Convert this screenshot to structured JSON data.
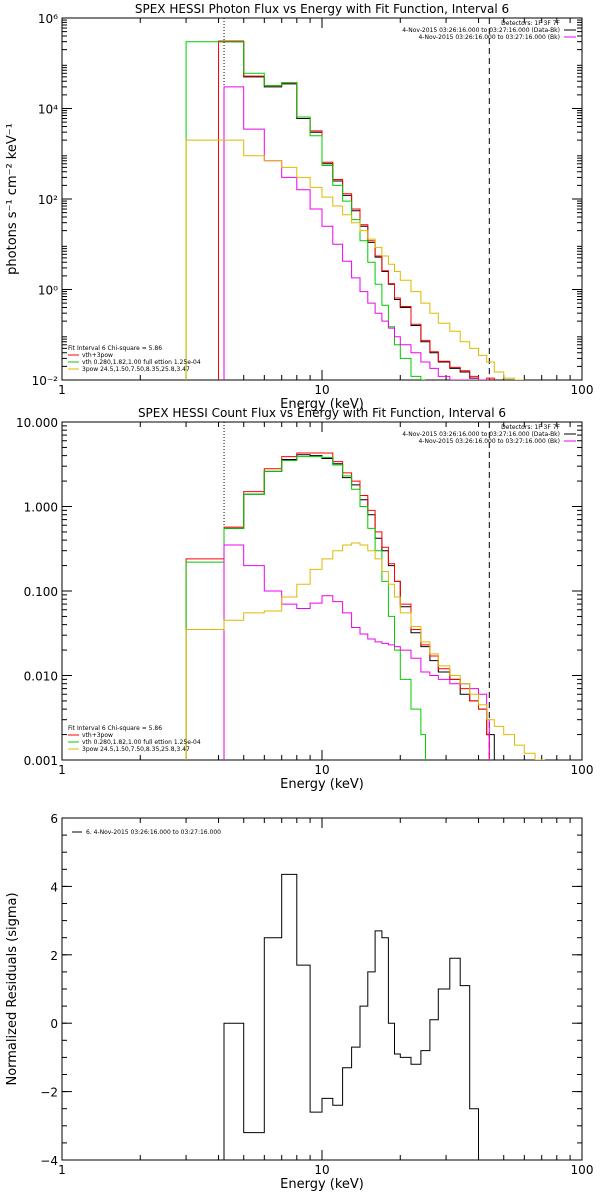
{
  "chart_data": [
    {
      "type": "line",
      "title": "SPEX HESSI Photon Flux vs Energy with Fit Function, Interval 6",
      "xlabel": "Energy (keV)",
      "ylabel": "photons s⁻¹ cm⁻² keV⁻¹",
      "xscale": "log",
      "yscale": "log",
      "xlim": [
        1,
        100
      ],
      "ylim": [
        0.01,
        1000000
      ],
      "xticks": [
        {
          "value": 1,
          "label": "1"
        },
        {
          "value": 10,
          "label": "10"
        },
        {
          "value": 100,
          "label": "100"
        }
      ],
      "yticks": [
        {
          "value": 0.01,
          "label": "10⁻²"
        },
        {
          "value": 1,
          "label": "10⁰"
        },
        {
          "value": 100,
          "label": "10²"
        },
        {
          "value": 10000,
          "label": "10⁴"
        },
        {
          "value": 1000000,
          "label": "10⁶"
        }
      ],
      "vlines": [
        {
          "x": 4.2,
          "style": "dotted"
        },
        {
          "x": 44,
          "style": "dashed"
        }
      ],
      "legend_right": [
        "Detectors: 1F 3F 7F",
        "4-Nov-2015 03:26:16.000 to 03:27:16.000 (Data-Bk)",
        "4-Nov-2015 03:26:16.000 to 03:27:16.000 (Bk)"
      ],
      "legend_left": [
        "Fit Interval 6   Chi-square = 5.86",
        "vth+3pow",
        "vth 0.280,1.82,1.00  full ettion 1.25e-04",
        "3pow 24.5,1.50,7.50,8.35,25.8,3.47"
      ],
      "series": [
        {
          "color": "#000000",
          "style": "step",
          "edges": [
            4,
            5,
            6,
            7,
            8,
            9,
            10,
            11,
            12,
            13,
            14,
            15,
            16,
            17,
            18,
            19,
            20,
            22,
            24,
            26,
            28,
            31,
            34,
            37,
            40,
            43,
            46
          ],
          "y": [
            300000,
            50000,
            30000,
            35000,
            6000,
            3000,
            600,
            250,
            120,
            55,
            25,
            11,
            5.2,
            2.5,
            1.3,
            0.6,
            0.4,
            0.16,
            0.07,
            0.04,
            0.025,
            0.018,
            0.015,
            0.011,
            0.006,
            0.01
          ]
        },
        {
          "color": "#ff0000",
          "style": "step",
          "edges": [
            4,
            5,
            6,
            7,
            8,
            9,
            10,
            11,
            12,
            13,
            14,
            15,
            16,
            17,
            18,
            19,
            20,
            22,
            24,
            26,
            28,
            31,
            34,
            37,
            40,
            43,
            46
          ],
          "y": [
            310000,
            52000,
            32000,
            37000,
            6500,
            3200,
            650,
            270,
            130,
            60,
            27,
            12,
            5.5,
            2.6,
            1.35,
            0.65,
            0.42,
            0.17,
            0.075,
            0.042,
            0.026,
            0.019,
            0.016,
            0.012,
            0.0065,
            0.011
          ]
        },
        {
          "color": "#00cc00",
          "style": "step",
          "edges": [
            3,
            4,
            5,
            6,
            7,
            8,
            9,
            10,
            11,
            12,
            13,
            14,
            15,
            16,
            17,
            18,
            19,
            20,
            22,
            24,
            25
          ],
          "y": [
            300000,
            300000,
            60000,
            32000,
            37000,
            6500,
            2500,
            550,
            200,
            90,
            35,
            12,
            4,
            1.3,
            0.45,
            0.15,
            0.06,
            0.03,
            0.012,
            0.01
          ]
        },
        {
          "color": "#ee00ee",
          "style": "step",
          "edges": [
            4.2,
            5,
            6,
            7,
            8,
            9,
            10,
            11,
            12,
            13,
            14,
            15,
            16,
            17,
            18,
            19,
            20,
            22,
            24,
            26,
            28,
            31,
            34,
            37,
            40,
            43,
            44
          ],
          "y": [
            30000,
            3500,
            700,
            300,
            160,
            60,
            25,
            10,
            4.2,
            1.8,
            0.9,
            0.5,
            0.3,
            0.2,
            0.14,
            0.09,
            0.06,
            0.04,
            0.025,
            0.018,
            0.012,
            0.01,
            0.01,
            0.01,
            0.01,
            0.01
          ]
        },
        {
          "color": "#ddbb00",
          "style": "step",
          "edges": [
            3,
            4,
            5,
            6,
            7,
            8,
            9,
            10,
            11,
            12,
            13,
            14,
            15,
            16,
            17,
            18,
            19,
            20,
            22,
            24,
            26,
            28,
            31,
            34,
            37,
            40,
            43,
            46,
            50,
            55,
            60
          ],
          "y": [
            2000,
            2000,
            900,
            700,
            500,
            300,
            180,
            110,
            70,
            45,
            30,
            20,
            13,
            8.5,
            5.5,
            3.6,
            2.5,
            1.6,
            0.9,
            0.5,
            0.3,
            0.18,
            0.12,
            0.07,
            0.05,
            0.035,
            0.025,
            0.015,
            0.011,
            0.01
          ]
        }
      ]
    },
    {
      "type": "line",
      "title": "SPEX HESSI Count Flux vs Energy with Fit Function, Interval 6",
      "xlabel": "Energy (keV)",
      "ylabel": "",
      "xscale": "log",
      "yscale": "log",
      "xlim": [
        1,
        100
      ],
      "ylim": [
        0.001,
        10
      ],
      "xticks": [
        {
          "value": 1,
          "label": "1"
        },
        {
          "value": 10,
          "label": "10"
        },
        {
          "value": 100,
          "label": "100"
        }
      ],
      "yticks": [
        {
          "value": 0.001,
          "label": "0.001"
        },
        {
          "value": 0.01,
          "label": "0.010"
        },
        {
          "value": 0.1,
          "label": "0.100"
        },
        {
          "value": 1,
          "label": "1.000"
        },
        {
          "value": 10,
          "label": "10.000"
        }
      ],
      "vlines": [
        {
          "x": 4.2,
          "style": "dotted"
        },
        {
          "x": 44,
          "style": "dashed"
        }
      ],
      "legend_right": [
        "Detectors: 1F 3F 7F",
        "4-Nov-2015 03:26:16.000 to 03:27:16.000 (Data-Bk)",
        "4-Nov-2015 03:26:16.000 to 03:27:16.000 (Bk)"
      ],
      "legend_left": [
        "Fit Interval 6   Chi-square = 5.86",
        "vth+3pow",
        "vth 0.280,1.82,1.00  full ettion 1.25e-04",
        "3pow 24.5,1.50,7.50,8.35,25.8,3.47"
      ],
      "series": [
        {
          "color": "#000000",
          "style": "step",
          "edges": [
            4.2,
            5,
            6,
            7,
            8,
            9,
            10,
            11,
            12,
            13,
            14,
            15,
            16,
            17,
            18,
            19,
            20,
            22,
            24,
            26,
            28,
            31,
            34,
            37,
            40,
            43,
            46
          ],
          "y": [
            0.55,
            1.4,
            2.6,
            3.6,
            4.1,
            4.0,
            3.7,
            3.2,
            2.2,
            1.8,
            1.2,
            0.8,
            0.42,
            0.3,
            0.2,
            0.13,
            0.065,
            0.032,
            0.022,
            0.015,
            0.011,
            0.009,
            0.006,
            0.005,
            0.004,
            0.002
          ]
        },
        {
          "color": "#ff0000",
          "style": "step",
          "edges": [
            3,
            4.2,
            5,
            6,
            7,
            8,
            9,
            10,
            11,
            12,
            13,
            14,
            15,
            16,
            17,
            18,
            19,
            20,
            22,
            24,
            26,
            28,
            31,
            34,
            37,
            40,
            43,
            44
          ],
          "y": [
            0.24,
            0.57,
            1.5,
            2.8,
            3.9,
            4.3,
            4.3,
            4.3,
            3.4,
            2.5,
            2.0,
            1.35,
            0.9,
            0.5,
            0.33,
            0.21,
            0.13,
            0.07,
            0.035,
            0.023,
            0.017,
            0.012,
            0.009,
            0.007,
            0.005,
            0.004,
            0.002
          ]
        },
        {
          "color": "#00cc00",
          "style": "step",
          "edges": [
            3,
            4.2,
            5,
            6,
            7,
            8,
            9,
            10,
            11,
            12,
            13,
            14,
            15,
            16,
            17,
            18,
            19,
            20,
            22,
            24,
            25
          ],
          "y": [
            0.22,
            0.55,
            1.4,
            2.6,
            3.5,
            3.9,
            3.9,
            3.8,
            3.1,
            2.3,
            1.6,
            1.0,
            0.55,
            0.3,
            0.13,
            0.05,
            0.02,
            0.009,
            0.004,
            0.002
          ]
        },
        {
          "color": "#ee00ee",
          "style": "step",
          "edges": [
            4.2,
            5,
            6,
            7,
            8,
            9,
            10,
            11,
            12,
            13,
            14,
            15,
            16,
            17,
            18,
            19,
            20,
            22,
            24,
            26,
            28,
            31,
            34,
            37,
            40,
            43,
            44
          ],
          "y": [
            0.35,
            0.2,
            0.1,
            0.07,
            0.062,
            0.072,
            0.088,
            0.075,
            0.055,
            0.037,
            0.031,
            0.027,
            0.025,
            0.024,
            0.023,
            0.022,
            0.02,
            0.016,
            0.011,
            0.01,
            0.009,
            0.008,
            0.008,
            0.007,
            0.006,
            0.003
          ]
        },
        {
          "color": "#ddbb00",
          "style": "step",
          "edges": [
            3,
            4.2,
            5,
            6,
            7,
            8,
            9,
            10,
            11,
            12,
            13,
            14,
            15,
            16,
            17,
            18,
            19,
            20,
            22,
            24,
            26,
            28,
            31,
            34,
            37,
            40,
            43,
            46,
            50,
            55,
            60,
            66,
            72
          ],
          "y": [
            0.035,
            0.045,
            0.055,
            0.058,
            0.085,
            0.12,
            0.18,
            0.24,
            0.3,
            0.35,
            0.37,
            0.35,
            0.3,
            0.24,
            0.17,
            0.12,
            0.085,
            0.055,
            0.038,
            0.025,
            0.018,
            0.013,
            0.01,
            0.008,
            0.006,
            0.0045,
            0.003,
            0.0025,
            0.002,
            0.0015,
            0.0012,
            0.001
          ]
        }
      ]
    },
    {
      "type": "line",
      "title": "",
      "xlabel": "Energy (keV)",
      "ylabel": "Normalized Residuals (sigma)",
      "xscale": "log",
      "yscale": "linear",
      "xlim": [
        1,
        100
      ],
      "ylim": [
        -4,
        6
      ],
      "xticks": [
        {
          "value": 1,
          "label": "1"
        },
        {
          "value": 10,
          "label": "10"
        },
        {
          "value": 100,
          "label": "100"
        }
      ],
      "yticks": [
        {
          "value": -4,
          "label": "−4"
        },
        {
          "value": -2,
          "label": "−2"
        },
        {
          "value": 0,
          "label": "0"
        },
        {
          "value": 2,
          "label": "2"
        },
        {
          "value": 4,
          "label": "4"
        },
        {
          "value": 6,
          "label": "6"
        }
      ],
      "vlines": [],
      "legend_right": [],
      "legend_left": [],
      "legend_top": "6.  4-Nov-2015 03:26:16.000 to 03:27:16.000",
      "series": [
        {
          "color": "#000000",
          "style": "step",
          "edges": [
            4.2,
            5,
            6,
            7,
            8,
            9,
            10,
            11,
            12,
            13,
            14,
            15,
            16,
            17,
            18,
            19,
            20,
            22,
            24,
            26,
            28,
            31,
            34,
            37,
            40,
            43,
            46
          ],
          "y": [
            0.0,
            -3.2,
            2.5,
            4.35,
            1.7,
            -2.6,
            -2.2,
            -2.4,
            -1.3,
            -0.7,
            0.5,
            1.5,
            2.7,
            2.5,
            0.0,
            -0.9,
            -1.0,
            -1.2,
            -0.8,
            0.1,
            1.0,
            1.9,
            1.1,
            -2.5,
            -4.0,
            -4.0
          ]
        }
      ]
    }
  ]
}
